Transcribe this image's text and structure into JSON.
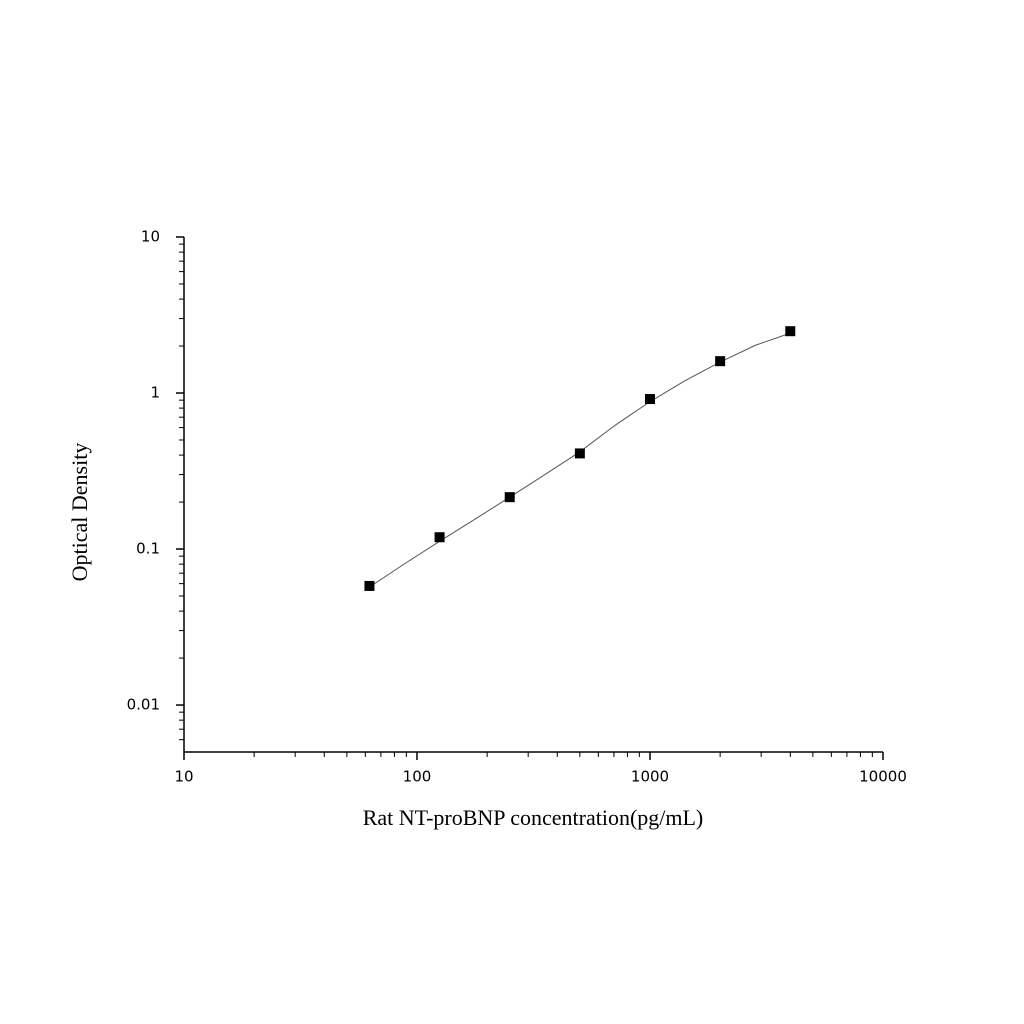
{
  "chart_data": {
    "type": "scatter",
    "x_label": "Rat NT-proBNP concentration(pg/mL)",
    "y_label": "Optical Density",
    "x": [
      62.5,
      125,
      250,
      500,
      1000,
      2000,
      4000
    ],
    "values": [
      0.058,
      0.119,
      0.215,
      0.41,
      0.915,
      1.6,
      2.49
    ],
    "color": "#000000",
    "fit": {
      "x": [
        62.5,
        88,
        125,
        177,
        250,
        354,
        500,
        707,
        1000,
        1414,
        2000,
        2828,
        4000
      ],
      "values": [
        0.057,
        0.08,
        0.112,
        0.155,
        0.215,
        0.3,
        0.42,
        0.62,
        0.88,
        1.2,
        1.58,
        2.02,
        2.42
      ],
      "color": "#555555"
    },
    "xlim": [
      10,
      10000
    ],
    "xticks": [
      10,
      100,
      1000,
      10000
    ],
    "ylim": [
      0.005,
      10
    ],
    "yticks": [
      0.01,
      0.1,
      1,
      10
    ],
    "xscale": "log",
    "yscale": "log",
    "minor_ticks": true,
    "grid": false
  }
}
